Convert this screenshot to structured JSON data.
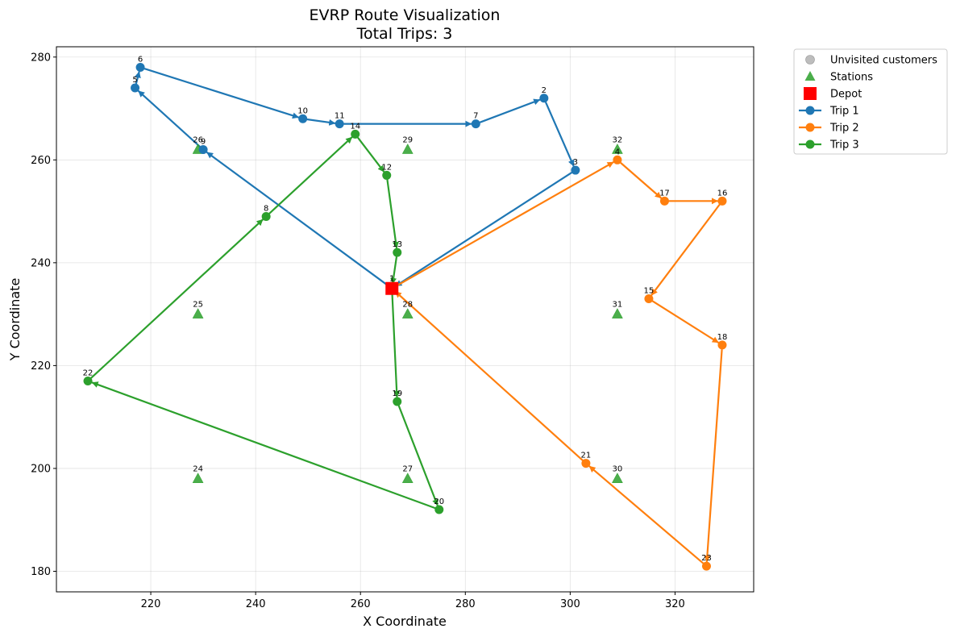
{
  "chart_data": {
    "type": "line",
    "title": "EVRP Route Visualization",
    "subtitle": "Total Trips: 3",
    "xlabel": "X Coordinate",
    "ylabel": "Y Coordinate",
    "xlim": [
      202,
      335
    ],
    "ylim": [
      176,
      282
    ],
    "xticks": [
      220,
      240,
      260,
      280,
      300,
      320
    ],
    "yticks": [
      180,
      200,
      220,
      240,
      260,
      280
    ],
    "grid": true,
    "legend_position": "outside-top-right",
    "legend": [
      {
        "label": "Unvisited customers",
        "kind": "circle",
        "color": "#bdbdbd"
      },
      {
        "label": "Stations",
        "kind": "triangle",
        "color": "#2ca02c"
      },
      {
        "label": "Depot",
        "kind": "square",
        "color": "#ff0000"
      },
      {
        "label": "Trip 1",
        "kind": "line",
        "color": "#1f77b4"
      },
      {
        "label": "Trip 2",
        "kind": "line",
        "color": "#ff7f0e"
      },
      {
        "label": "Trip 3",
        "kind": "line",
        "color": "#2ca02c"
      }
    ],
    "depot": {
      "label": "1",
      "x": 266,
      "y": 235,
      "color": "#ff0000"
    },
    "stations": [
      {
        "label": "24",
        "x": 229,
        "y": 198
      },
      {
        "label": "25",
        "x": 229,
        "y": 230
      },
      {
        "label": "26",
        "x": 229,
        "y": 262
      },
      {
        "label": "27",
        "x": 269,
        "y": 198
      },
      {
        "label": "28",
        "x": 269,
        "y": 230
      },
      {
        "label": "29",
        "x": 269,
        "y": 262
      },
      {
        "label": "30",
        "x": 309,
        "y": 198
      },
      {
        "label": "31",
        "x": 309,
        "y": 230
      },
      {
        "label": "32",
        "x": 309,
        "y": 262
      }
    ],
    "series": [
      {
        "name": "Trip 1",
        "color": "#1f77b4",
        "points": [
          {
            "label": "",
            "x": 266,
            "y": 235
          },
          {
            "label": "9",
            "x": 230,
            "y": 262
          },
          {
            "label": "5",
            "x": 217,
            "y": 274
          },
          {
            "label": "6",
            "x": 218,
            "y": 278
          },
          {
            "label": "10",
            "x": 249,
            "y": 268
          },
          {
            "label": "11",
            "x": 256,
            "y": 267
          },
          {
            "label": "7",
            "x": 282,
            "y": 267
          },
          {
            "label": "2",
            "x": 295,
            "y": 272
          },
          {
            "label": "3",
            "x": 301,
            "y": 258
          },
          {
            "label": "",
            "x": 266,
            "y": 235
          }
        ]
      },
      {
        "name": "Trip 2",
        "color": "#ff7f0e",
        "points": [
          {
            "label": "",
            "x": 266,
            "y": 235
          },
          {
            "label": "4",
            "x": 309,
            "y": 260
          },
          {
            "label": "17",
            "x": 318,
            "y": 252
          },
          {
            "label": "16",
            "x": 329,
            "y": 252
          },
          {
            "label": "15",
            "x": 315,
            "y": 233
          },
          {
            "label": "18",
            "x": 329,
            "y": 224
          },
          {
            "label": "23",
            "x": 326,
            "y": 181
          },
          {
            "label": "21",
            "x": 303,
            "y": 201
          },
          {
            "label": "",
            "x": 266,
            "y": 235
          }
        ]
      },
      {
        "name": "Trip 3",
        "color": "#2ca02c",
        "points": [
          {
            "label": "",
            "x": 266,
            "y": 235
          },
          {
            "label": "19",
            "x": 267,
            "y": 213
          },
          {
            "label": "20",
            "x": 275,
            "y": 192
          },
          {
            "label": "22",
            "x": 208,
            "y": 217
          },
          {
            "label": "8",
            "x": 242,
            "y": 249
          },
          {
            "label": "14",
            "x": 259,
            "y": 265
          },
          {
            "label": "12",
            "x": 265,
            "y": 257
          },
          {
            "label": "13",
            "x": 267,
            "y": 242
          },
          {
            "label": "",
            "x": 266,
            "y": 235
          }
        ]
      }
    ]
  }
}
